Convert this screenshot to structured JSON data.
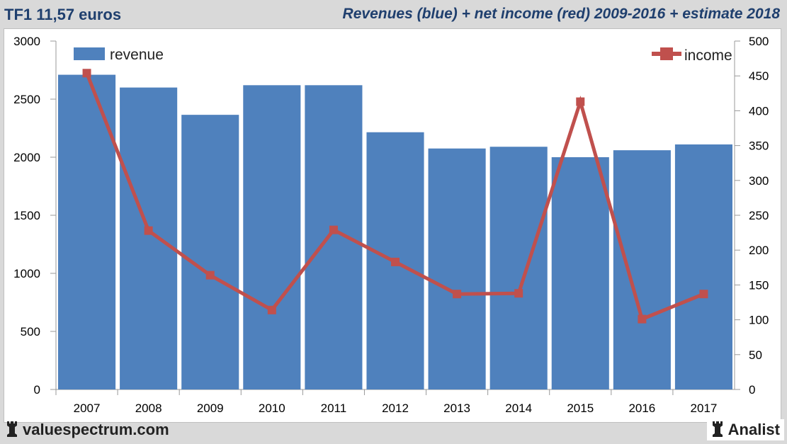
{
  "header": {
    "left_title": "TF1 11,57 euros",
    "right_title": "Revenues (blue) + net income (red) 2009-2016 + estimate 2018"
  },
  "footer": {
    "site": "valuespectrum.com",
    "brand": "Analist"
  },
  "chart_data": {
    "type": "bar+line",
    "categories": [
      "2007",
      "2008",
      "2009",
      "2010",
      "2011",
      "2012",
      "2013",
      "2014",
      "2015",
      "2016",
      "2017"
    ],
    "series": [
      {
        "name": "revenue",
        "type": "bar",
        "axis": "left",
        "color": "#4f81bd",
        "values": [
          2710,
          2600,
          2365,
          2620,
          2620,
          2215,
          2075,
          2090,
          2000,
          2060,
          2110
        ]
      },
      {
        "name": "income",
        "type": "line",
        "axis": "right",
        "color": "#c0504d",
        "values": [
          454,
          228,
          164,
          114,
          229,
          183,
          137,
          138,
          413,
          101,
          137
        ]
      }
    ],
    "y_left": {
      "min": 0,
      "max": 3000,
      "ticks": [
        0,
        500,
        1000,
        1500,
        2000,
        2500,
        3000
      ]
    },
    "y_right": {
      "min": 0,
      "max": 500,
      "ticks": [
        0,
        50,
        100,
        150,
        200,
        250,
        300,
        350,
        400,
        450,
        500
      ]
    },
    "legend": [
      {
        "label": "revenue",
        "placement": "top-left"
      },
      {
        "label": "income",
        "placement": "top-right"
      }
    ]
  }
}
